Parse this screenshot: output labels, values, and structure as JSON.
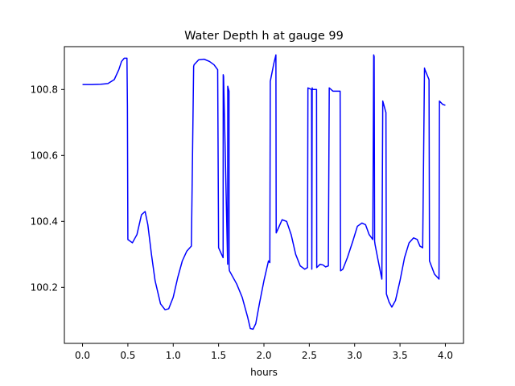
{
  "chart_data": {
    "type": "line",
    "title": "Water Depth h at gauge 99",
    "xlabel": "hours",
    "ylabel": "",
    "xlim": [
      -0.2,
      4.2
    ],
    "ylim": [
      100.03,
      100.93
    ],
    "xticks": [
      0.0,
      0.5,
      1.0,
      1.5,
      2.0,
      2.5,
      3.0,
      3.5,
      4.0
    ],
    "xtick_labels": [
      "0.0",
      "0.5",
      "1.0",
      "1.5",
      "2.0",
      "2.5",
      "3.0",
      "3.5",
      "4.0"
    ],
    "yticks": [
      100.2,
      100.4,
      100.6,
      100.8
    ],
    "ytick_labels": [
      "100.2",
      "100.4",
      "100.6",
      "100.8"
    ],
    "grid": false,
    "legend": "none",
    "series_color": "#0000ff",
    "series": [
      {
        "x": [
          0.0,
          0.1,
          0.2,
          0.28,
          0.35,
          0.4,
          0.43,
          0.46,
          0.49,
          0.495,
          0.5,
          0.55,
          0.6,
          0.65,
          0.69,
          0.72,
          0.76,
          0.8,
          0.86,
          0.91,
          0.95,
          1.0,
          1.05,
          1.1,
          1.15,
          1.2,
          1.225,
          1.23,
          1.28,
          1.34,
          1.4,
          1.45,
          1.49,
          1.5,
          1.55,
          1.551,
          1.555,
          1.6,
          1.601,
          1.605,
          1.615,
          1.616,
          1.62,
          1.7,
          1.76,
          1.82,
          1.85,
          1.88,
          1.91,
          1.95,
          2.0,
          2.05,
          2.065,
          2.07,
          2.11,
          2.132,
          2.135,
          2.16,
          2.2,
          2.25,
          2.3,
          2.35,
          2.4,
          2.45,
          2.48,
          2.485,
          2.525,
          2.528,
          2.532,
          2.535,
          2.58,
          2.582,
          2.62,
          2.65,
          2.68,
          2.71,
          2.72,
          2.76,
          2.8,
          2.84,
          2.845,
          2.87,
          2.92,
          2.98,
          3.03,
          3.08,
          3.12,
          3.16,
          3.2,
          3.21,
          3.215,
          3.22,
          3.225,
          3.26,
          3.3,
          3.31,
          3.34,
          3.345,
          3.35,
          3.38,
          3.41,
          3.45,
          3.5,
          3.55,
          3.6,
          3.65,
          3.69,
          3.72,
          3.75,
          3.77,
          3.775,
          3.82,
          3.825,
          3.88,
          3.93,
          3.935,
          3.97,
          4.0
        ],
        "y": [
          100.815,
          100.815,
          100.816,
          100.818,
          100.83,
          100.86,
          100.885,
          100.895,
          100.895,
          100.75,
          100.345,
          100.335,
          100.36,
          100.42,
          100.43,
          100.39,
          100.3,
          100.22,
          100.15,
          100.132,
          100.135,
          100.17,
          100.23,
          100.28,
          100.31,
          100.325,
          100.87,
          100.875,
          100.89,
          100.892,
          100.885,
          100.875,
          100.86,
          100.32,
          100.29,
          100.845,
          100.84,
          100.27,
          100.81,
          100.805,
          100.795,
          100.26,
          100.25,
          100.21,
          100.17,
          100.11,
          100.075,
          100.073,
          100.09,
          100.15,
          100.22,
          100.28,
          100.275,
          100.825,
          100.88,
          100.905,
          100.365,
          100.38,
          100.405,
          100.4,
          100.36,
          100.3,
          100.265,
          100.255,
          100.26,
          100.805,
          100.8,
          100.255,
          100.805,
          100.8,
          100.8,
          100.26,
          100.27,
          100.268,
          100.262,
          100.265,
          100.805,
          100.795,
          100.795,
          100.795,
          100.25,
          100.255,
          100.29,
          100.34,
          100.385,
          100.395,
          100.39,
          100.36,
          100.345,
          100.905,
          100.9,
          100.34,
          100.33,
          100.28,
          100.225,
          100.765,
          100.735,
          100.73,
          100.18,
          100.155,
          100.14,
          100.16,
          100.22,
          100.29,
          100.335,
          100.35,
          100.345,
          100.325,
          100.32,
          100.865,
          100.86,
          100.83,
          100.28,
          100.24,
          100.225,
          100.765,
          100.755,
          100.752
        ]
      }
    ]
  }
}
